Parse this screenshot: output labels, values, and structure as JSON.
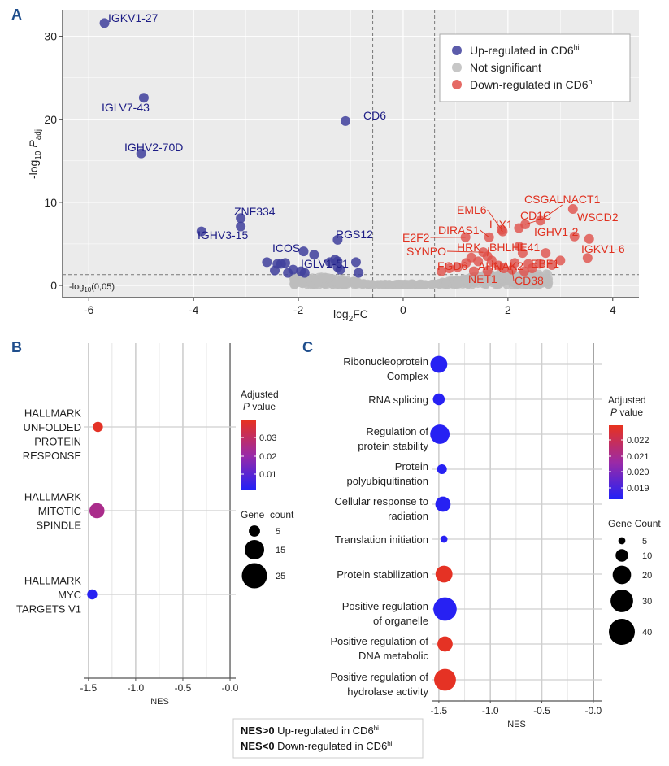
{
  "panel_labels": {
    "a": "A",
    "b": "B",
    "c": "C"
  },
  "colors": {
    "up": "#3f3f9c",
    "up_label": "#1c1c85",
    "down": "#e0504a",
    "down_label": "#e0301f",
    "ns": "#bdbdbd",
    "p_low": "#2121f7",
    "p_mid": "#9b2aa6",
    "p_high": "#e8321e",
    "panel_label": "#1f4e8c"
  },
  "chart_data": [
    {
      "type": "scatter",
      "panel": "A",
      "xlabel": {
        "main": "log",
        "sub": "2",
        "tail": "FC"
      },
      "ylabel": {
        "main": "-log",
        "sub": "10",
        "italic": " P",
        "sub2": "adj"
      },
      "xticks": [
        -6,
        -4,
        -2,
        0,
        2,
        4
      ],
      "yticks": [
        0,
        10,
        20,
        30
      ],
      "xlim": [
        -6.5,
        4.5
      ],
      "ylim": [
        -1.47,
        33.2
      ],
      "grid": true,
      "thresholds": {
        "log2fc": [
          -0.58,
          0.6
        ],
        "neglog10p": 1.3
      },
      "threshold_label": {
        "main": "-log",
        "sub": "10",
        "tail": "(0,05)"
      },
      "legend": {
        "placement": "top-right",
        "items": [
          {
            "label": "Up-regulated in CD6",
            "sup": "hi",
            "color": "#3f3f9c"
          },
          {
            "label": "Not significant",
            "sup": "",
            "color": "#bdbdbd"
          },
          {
            "label": "Down-regulated in CD6",
            "sup": "hi",
            "color": "#e0504a"
          }
        ]
      },
      "up_regulated": [
        {
          "gene": "IGKV1-27",
          "log2fc": -5.7,
          "neglog10p": 31.6
        },
        {
          "gene": "IGLV7-43",
          "log2fc": -4.95,
          "neglog10p": 22.6
        },
        {
          "gene": "IGHV2-70D",
          "log2fc": -5.0,
          "neglog10p": 15.9
        },
        {
          "gene": "CD6",
          "log2fc": -1.1,
          "neglog10p": 19.8
        },
        {
          "gene": "ZNF334",
          "log2fc": -3.1,
          "neglog10p": 8.1
        },
        {
          "gene": "",
          "log2fc": -3.1,
          "neglog10p": 7.1
        },
        {
          "gene": "IGHV3-15",
          "log2fc": -3.85,
          "neglog10p": 6.5
        },
        {
          "gene": "RGS12",
          "log2fc": -1.25,
          "neglog10p": 5.5
        },
        {
          "gene": "ICOS",
          "log2fc": -1.9,
          "neglog10p": 4.1
        },
        {
          "gene": "",
          "log2fc": -1.7,
          "neglog10p": 3.7
        },
        {
          "gene": "",
          "log2fc": -2.6,
          "neglog10p": 2.8
        },
        {
          "gene": "",
          "log2fc": -2.45,
          "neglog10p": 1.8
        },
        {
          "gene": "",
          "log2fc": -2.4,
          "neglog10p": 2.6
        },
        {
          "gene": "",
          "log2fc": -2.33,
          "neglog10p": 2.6
        },
        {
          "gene": "",
          "log2fc": -2.25,
          "neglog10p": 2.7
        },
        {
          "gene": "",
          "log2fc": -2.2,
          "neglog10p": 1.5
        },
        {
          "gene": "",
          "log2fc": -2.1,
          "neglog10p": 1.9
        },
        {
          "gene": "",
          "log2fc": -1.95,
          "neglog10p": 1.7
        },
        {
          "gene": "",
          "log2fc": -1.88,
          "neglog10p": 1.5
        },
        {
          "gene": "IGLV1-51",
          "log2fc": -1.4,
          "neglog10p": 2.8
        },
        {
          "gene": "",
          "log2fc": -1.3,
          "neglog10p": 3.1
        },
        {
          "gene": "",
          "log2fc": -1.25,
          "neglog10p": 2.9
        },
        {
          "gene": "",
          "log2fc": -1.25,
          "neglog10p": 2.2
        },
        {
          "gene": "",
          "log2fc": -1.2,
          "neglog10p": 1.9
        },
        {
          "gene": "",
          "log2fc": -0.9,
          "neglog10p": 2.8
        },
        {
          "gene": "",
          "log2fc": -0.85,
          "neglog10p": 1.5
        }
      ],
      "down_regulated": [
        {
          "gene": "WSCD2",
          "log2fc": 3.24,
          "neglog10p": 9.2
        },
        {
          "gene": "CSGALNACT1",
          "log2fc": 2.62,
          "neglog10p": 7.8
        },
        {
          "gene": "CD1C",
          "log2fc": 2.33,
          "neglog10p": 7.35
        },
        {
          "gene": "",
          "log2fc": 2.21,
          "neglog10p": 6.9
        },
        {
          "gene": "LIX1",
          "log2fc": 1.9,
          "neglog10p": 6.5
        },
        {
          "gene": "EML6",
          "log2fc": 1.88,
          "neglog10p": 6.7
        },
        {
          "gene": "DIRAS1",
          "log2fc": 1.64,
          "neglog10p": 5.8
        },
        {
          "gene": "E2F2",
          "log2fc": 1.19,
          "neglog10p": 5.8
        },
        {
          "gene": "IGHV1-2",
          "log2fc": 3.27,
          "neglog10p": 5.9
        },
        {
          "gene": "",
          "log2fc": 3.55,
          "neglog10p": 5.6
        },
        {
          "gene": "IGKV1-6",
          "log2fc": 3.52,
          "neglog10p": 3.3
        },
        {
          "gene": "",
          "log2fc": 2.21,
          "neglog10p": 4.7
        },
        {
          "gene": "",
          "log2fc": 2.28,
          "neglog10p": 3.9
        },
        {
          "gene": "",
          "log2fc": 2.72,
          "neglog10p": 3.9
        },
        {
          "gene": "EBF1",
          "log2fc": 3.0,
          "neglog10p": 3.0
        },
        {
          "gene": "",
          "log2fc": 2.84,
          "neglog10p": 2.45
        },
        {
          "gene": "",
          "log2fc": 2.6,
          "neglog10p": 2.6
        },
        {
          "gene": "",
          "log2fc": 2.46,
          "neglog10p": 2.05
        },
        {
          "gene": "",
          "log2fc": 2.39,
          "neglog10p": 2.6
        },
        {
          "gene": "SYNPO",
          "log2fc": 1.53,
          "neglog10p": 4.0
        },
        {
          "gene": "BHLHE41",
          "log2fc": 1.61,
          "neglog10p": 3.5
        },
        {
          "gene": "HRK",
          "log2fc": 1.3,
          "neglog10p": 3.35
        },
        {
          "gene": "",
          "log2fc": 1.43,
          "neglog10p": 2.9
        },
        {
          "gene": "AHNAK2",
          "log2fc": 1.69,
          "neglog10p": 3.0
        },
        {
          "gene": "",
          "log2fc": 1.35,
          "neglog10p": 1.7
        },
        {
          "gene": "NET1",
          "log2fc": 1.61,
          "neglog10p": 1.75
        },
        {
          "gene": "",
          "log2fc": 1.2,
          "neglog10p": 2.7
        },
        {
          "gene": "FGD6",
          "log2fc": 1.04,
          "neglog10p": 2.2
        },
        {
          "gene": "",
          "log2fc": 0.73,
          "neglog10p": 1.7
        },
        {
          "gene": "",
          "log2fc": 0.88,
          "neglog10p": 2.05
        },
        {
          "gene": "",
          "log2fc": 1.82,
          "neglog10p": 2.4
        },
        {
          "gene": "",
          "log2fc": 2.13,
          "neglog10p": 2.7
        },
        {
          "gene": "CD38",
          "log2fc": 2.08,
          "neglog10p": 1.9
        },
        {
          "gene": "",
          "log2fc": 2.31,
          "neglog10p": 1.7
        },
        {
          "gene": "",
          "log2fc": 1.92,
          "neglog10p": 2.05
        }
      ]
    },
    {
      "type": "scatter",
      "panel": "B",
      "xlabel": "NES",
      "xticks": [
        "-1.5",
        "-1.0",
        "-0.5",
        "-0.0"
      ],
      "xlim": [
        -1.55,
        0.06
      ],
      "grid": true,
      "color_legend": {
        "title1": "Adjusted",
        "title_italic": "P",
        "title2": " value",
        "ticks": [
          "0.03",
          "0.02",
          "0.01"
        ],
        "range": [
          0.001,
          0.036
        ]
      },
      "size_legend": {
        "title": "Gene  count",
        "values": [
          5,
          15,
          25
        ]
      },
      "terms": [
        {
          "lines": [
            "HALLMARK",
            "UNFOLDED",
            "PROTEIN",
            "RESPONSE"
          ],
          "nes": -1.4,
          "padj": 0.035,
          "count": 4
        },
        {
          "lines": [
            "HALLMARK",
            "MITOTIC",
            "SPINDLE"
          ],
          "nes": -1.41,
          "padj": 0.022,
          "count": 9
        },
        {
          "lines": [
            "HALLMARK",
            "MYC",
            "TARGETS V1"
          ],
          "nes": -1.46,
          "padj": 0.002,
          "count": 4
        }
      ]
    },
    {
      "type": "scatter",
      "panel": "C",
      "xlabel": "NES",
      "xticks": [
        "-1.5",
        "-1.0",
        "-0.5",
        "-0.0"
      ],
      "xlim": [
        -1.57,
        0.08
      ],
      "grid": true,
      "color_legend": {
        "title1": "Adjusted",
        "title_italic": "P",
        "title2": " value",
        "ticks": [
          "0.022",
          "0.021",
          "0.020",
          "0.019"
        ],
        "range": [
          0.0185,
          0.0229
        ]
      },
      "size_legend": {
        "title": "Gene Count",
        "values": [
          5,
          10,
          20,
          30,
          40
        ]
      },
      "terms": [
        {
          "lines": [
            "Ribonucleoprotein",
            "Complex"
          ],
          "nes": -1.5,
          "padj": 0.0186,
          "count": 17
        },
        {
          "lines": [
            "RNA splicing"
          ],
          "nes": -1.5,
          "padj": 0.0186,
          "count": 9
        },
        {
          "lines": [
            "Regulation of",
            "protein stability"
          ],
          "nes": -1.49,
          "padj": 0.0186,
          "count": 22
        },
        {
          "lines": [
            "Protein",
            "polyubiquitination"
          ],
          "nes": -1.47,
          "padj": 0.0186,
          "count": 7
        },
        {
          "lines": [
            "Cellular response to",
            "radiation"
          ],
          "nes": -1.46,
          "padj": 0.0186,
          "count": 14
        },
        {
          "lines": [
            "Translation initiation"
          ],
          "nes": -1.45,
          "padj": 0.0186,
          "count": 5
        },
        {
          "lines": [
            "Protein stabilization"
          ],
          "nes": -1.45,
          "padj": 0.0228,
          "count": 17
        },
        {
          "lines": [
            "Positive regulation",
            "of organelle"
          ],
          "nes": -1.44,
          "padj": 0.0186,
          "count": 32
        },
        {
          "lines": [
            "Positive regulation of",
            "DNA metabolic"
          ],
          "nes": -1.44,
          "padj": 0.0228,
          "count": 14
        },
        {
          "lines": [
            "Positive regulation of",
            "hydrolase activity"
          ],
          "nes": -1.44,
          "padj": 0.0228,
          "count": 28
        }
      ]
    }
  ],
  "nes_note": {
    "line1_bold": "NES>0",
    "line1_text": " Up-regulated in CD6",
    "line1_sup": "hi",
    "line2_bold": "NES<0",
    "line2_text": " Down-regulated in CD6",
    "line2_sup": "hi"
  }
}
